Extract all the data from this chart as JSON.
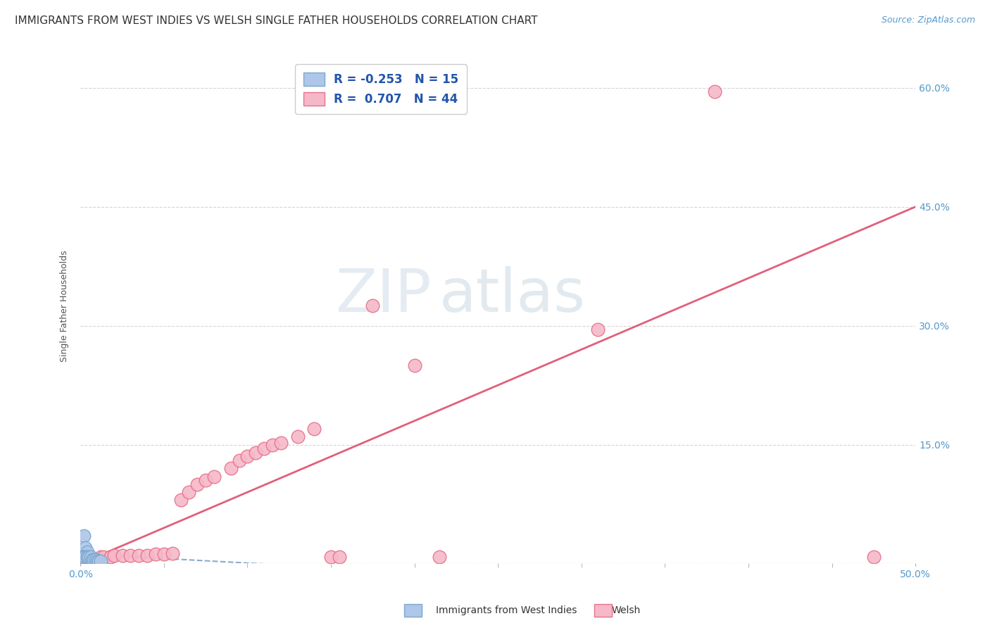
{
  "title": "IMMIGRANTS FROM WEST INDIES VS WELSH SINGLE FATHER HOUSEHOLDS CORRELATION CHART",
  "source": "Source: ZipAtlas.com",
  "ylabel": "Single Father Households",
  "xlim": [
    0.0,
    0.5
  ],
  "ylim": [
    0.0,
    0.65
  ],
  "yticks": [
    0.0,
    0.15,
    0.3,
    0.45,
    0.6
  ],
  "ytick_labels": [
    "",
    "15.0%",
    "30.0%",
    "45.0%",
    "60.0%"
  ],
  "xtick_left": 0.0,
  "xtick_right": 0.5,
  "xtick_left_label": "0.0%",
  "xtick_right_label": "50.0%",
  "grid_color": "#cccccc",
  "background_color": "#ffffff",
  "title_fontsize": 11,
  "axis_label_fontsize": 9,
  "tick_fontsize": 10,
  "legend_R_blue": "-0.253",
  "legend_N_blue": "15",
  "legend_R_pink": "0.707",
  "legend_N_pink": "44",
  "blue_color": "#aec6e8",
  "pink_color": "#f5b8c8",
  "blue_edge_color": "#7ba7d0",
  "pink_edge_color": "#e8708a",
  "pink_line_color": "#e0607a",
  "blue_line_color": "#8aabcc",
  "source_color": "#5599cc",
  "blue_tick_color": "#5599cc",
  "watermark_zip": "ZIP",
  "watermark_atlas": "atlas",
  "blue_points": [
    [
      0.002,
      0.035
    ],
    [
      0.003,
      0.02
    ],
    [
      0.004,
      0.015
    ],
    [
      0.001,
      0.008
    ],
    [
      0.002,
      0.008
    ],
    [
      0.003,
      0.008
    ],
    [
      0.004,
      0.008
    ],
    [
      0.005,
      0.008
    ],
    [
      0.006,
      0.008
    ],
    [
      0.007,
      0.005
    ],
    [
      0.008,
      0.005
    ],
    [
      0.009,
      0.005
    ],
    [
      0.01,
      0.003
    ],
    [
      0.011,
      0.003
    ],
    [
      0.012,
      0.003
    ]
  ],
  "pink_points": [
    [
      0.001,
      0.003
    ],
    [
      0.002,
      0.003
    ],
    [
      0.003,
      0.003
    ],
    [
      0.004,
      0.003
    ],
    [
      0.005,
      0.005
    ],
    [
      0.006,
      0.005
    ],
    [
      0.007,
      0.005
    ],
    [
      0.008,
      0.005
    ],
    [
      0.009,
      0.005
    ],
    [
      0.01,
      0.005
    ],
    [
      0.011,
      0.005
    ],
    [
      0.012,
      0.008
    ],
    [
      0.014,
      0.008
    ],
    [
      0.018,
      0.008
    ],
    [
      0.02,
      0.01
    ],
    [
      0.025,
      0.01
    ],
    [
      0.03,
      0.01
    ],
    [
      0.035,
      0.01
    ],
    [
      0.04,
      0.01
    ],
    [
      0.045,
      0.012
    ],
    [
      0.05,
      0.012
    ],
    [
      0.055,
      0.013
    ],
    [
      0.06,
      0.08
    ],
    [
      0.065,
      0.09
    ],
    [
      0.07,
      0.1
    ],
    [
      0.075,
      0.105
    ],
    [
      0.08,
      0.11
    ],
    [
      0.09,
      0.12
    ],
    [
      0.095,
      0.13
    ],
    [
      0.1,
      0.135
    ],
    [
      0.105,
      0.14
    ],
    [
      0.11,
      0.145
    ],
    [
      0.115,
      0.15
    ],
    [
      0.12,
      0.152
    ],
    [
      0.13,
      0.16
    ],
    [
      0.14,
      0.17
    ],
    [
      0.15,
      0.008
    ],
    [
      0.155,
      0.008
    ],
    [
      0.175,
      0.325
    ],
    [
      0.2,
      0.25
    ],
    [
      0.215,
      0.008
    ],
    [
      0.31,
      0.295
    ],
    [
      0.38,
      0.595
    ],
    [
      0.475,
      0.008
    ]
  ],
  "pink_line": {
    "x0": 0.0,
    "y0": 0.0,
    "x1": 0.5,
    "y1": 0.45
  },
  "blue_line": {
    "x0": 0.0,
    "y0": 0.012,
    "x1": 0.15,
    "y1": -0.005
  }
}
